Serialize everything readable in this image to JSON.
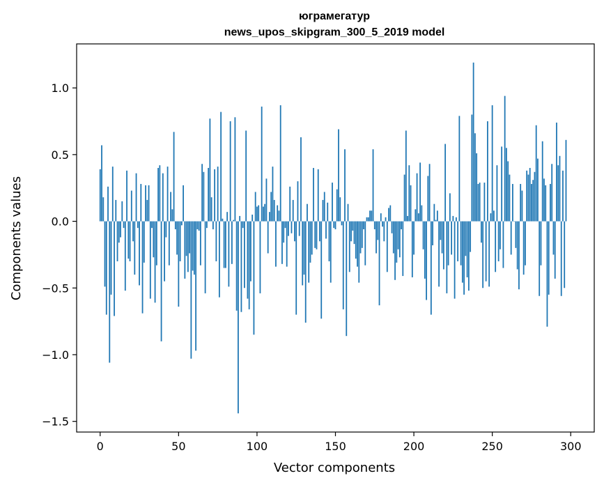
{
  "chart_data": {
    "type": "bar",
    "title": "юграмегатур",
    "subtitle": "news_upos_skipgram_300_5_2019 model",
    "xlabel": "Vector components",
    "ylabel": "Components values",
    "xlim": [
      -15,
      315
    ],
    "ylim": [
      -1.58,
      1.33
    ],
    "x_ticks": [
      0,
      50,
      100,
      150,
      200,
      250,
      300
    ],
    "x_tick_labels": [
      "0",
      "50",
      "100",
      "150",
      "200",
      "250",
      "300"
    ],
    "y_ticks": [
      -1.5,
      -1.0,
      -0.5,
      0.0,
      0.5,
      1.0
    ],
    "y_tick_labels": [
      "−1.5",
      "−1.0",
      "−0.5",
      "0.0",
      "0.5",
      "1.0"
    ],
    "bar_color": "#1f77b4",
    "values": [
      0.39,
      0.57,
      0.18,
      -0.49,
      -0.7,
      0.26,
      -1.06,
      -0.55,
      0.41,
      -0.71,
      0.16,
      -0.3,
      -0.16,
      -0.12,
      0.15,
      -0.05,
      -0.52,
      0.38,
      -0.28,
      -0.3,
      0.23,
      -0.15,
      -0.4,
      0.36,
      -0.05,
      -0.48,
      0.28,
      -0.69,
      -0.31,
      0.27,
      0.16,
      0.27,
      -0.58,
      -0.05,
      -0.27,
      -0.61,
      -0.33,
      0.4,
      0.42,
      -0.9,
      0.36,
      -0.45,
      -0.12,
      0.41,
      -0.33,
      0.22,
      0.09,
      0.67,
      -0.06,
      -0.25,
      -0.64,
      -0.3,
      -0.03,
      0.27,
      -0.43,
      -0.26,
      -0.38,
      -0.24,
      -1.03,
      -0.37,
      -0.4,
      -0.97,
      -0.06,
      -0.07,
      -0.33,
      0.43,
      0.37,
      -0.54,
      -0.05,
      0.4,
      0.77,
      0.18,
      -0.06,
      0.39,
      -0.3,
      0.41,
      -0.57,
      0.82,
      0.02,
      -0.35,
      -0.35,
      0.07,
      -0.49,
      0.75,
      -0.32,
      0.01,
      0.78,
      -0.67,
      -1.44,
      0.04,
      -0.68,
      -0.05,
      -0.5,
      0.68,
      -0.58,
      -0.66,
      -0.45,
      0.05,
      -0.85,
      0.22,
      0.11,
      0.12,
      -0.54,
      0.86,
      0.11,
      0.13,
      0.32,
      -0.24,
      0.07,
      0.22,
      0.41,
      0.16,
      -0.34,
      0.12,
      0.08,
      0.87,
      -0.32,
      -0.16,
      -0.05,
      -0.34,
      -0.11,
      0.26,
      -0.09,
      0.16,
      -0.15,
      -0.7,
      0.3,
      -0.11,
      0.63,
      -0.48,
      -0.4,
      -0.76,
      0.13,
      -0.46,
      -0.31,
      -0.25,
      0.4,
      -0.2,
      -0.21,
      0.39,
      -0.15,
      -0.73,
      0.16,
      0.22,
      -0.13,
      0.14,
      -0.3,
      -0.46,
      0.29,
      -0.05,
      -0.06,
      0.24,
      0.69,
      0.18,
      -0.03,
      -0.66,
      0.54,
      -0.86,
      0.13,
      -0.38,
      -0.15,
      -0.07,
      -0.17,
      -0.28,
      -0.34,
      -0.46,
      -0.24,
      -0.2,
      -0.06,
      -0.33,
      0.03,
      0.03,
      0.08,
      0.08,
      0.54,
      -0.06,
      -0.24,
      -0.14,
      -0.63,
      0.06,
      -0.04,
      -0.15,
      0.03,
      -0.38,
      0.1,
      0.12,
      -0.09,
      -0.24,
      -0.44,
      -0.31,
      -0.21,
      -0.27,
      -0.06,
      -0.41,
      0.35,
      0.68,
      0.04,
      0.42,
      0.27,
      -0.42,
      -0.25,
      0.09,
      0.36,
      0.06,
      0.44,
      0.12,
      -0.21,
      -0.43,
      -0.59,
      0.34,
      0.43,
      -0.7,
      -0.18,
      0.13,
      0.01,
      0.08,
      -0.49,
      -0.14,
      -0.24,
      -0.36,
      0.58,
      -0.54,
      -0.33,
      0.21,
      -0.25,
      0.04,
      -0.58,
      0.03,
      -0.3,
      0.79,
      -0.33,
      -0.46,
      -0.55,
      -0.26,
      -0.42,
      -0.52,
      -0.23,
      0.8,
      1.19,
      0.66,
      0.51,
      0.28,
      0.29,
      -0.16,
      -0.5,
      0.29,
      -0.45,
      0.75,
      -0.49,
      0.06,
      0.87,
      0.08,
      -0.38,
      0.42,
      -0.3,
      -0.21,
      0.56,
      -0.35,
      0.94,
      0.55,
      0.45,
      0.35,
      -0.25,
      0.28,
      0.0,
      -0.2,
      -0.36,
      -0.51,
      0.28,
      0.23,
      -0.4,
      -0.33,
      0.38,
      0.35,
      0.4,
      0.28,
      0.31,
      0.37,
      0.72,
      0.47,
      -0.56,
      -0.33,
      0.6,
      0.32,
      0.27,
      -0.79,
      -0.55,
      0.28,
      0.43,
      -0.25,
      -0.43,
      0.74,
      0.42,
      0.49,
      -0.56,
      0.38,
      -0.5,
      0.61
    ]
  }
}
